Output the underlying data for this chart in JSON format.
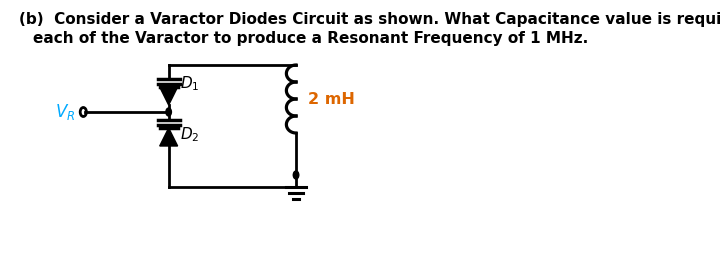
{
  "title_line1": "(b)  Consider a Varactor Diodes Circuit as shown. What Capacitance value is required for",
  "title_line2": "each of the Varactor to produce a Resonant Frequency of 1 MHz.",
  "title_color": "#000000",
  "title_fontsize": 11.0,
  "bg_color": "#ffffff",
  "vr_label": "$V_R$",
  "vr_color": "#00aaff",
  "d1_label": "$D_1$",
  "d2_label": "$D_2$",
  "inductor_label": "2 mH",
  "inductor_color": "#dd6600",
  "circuit_color": "#000000"
}
